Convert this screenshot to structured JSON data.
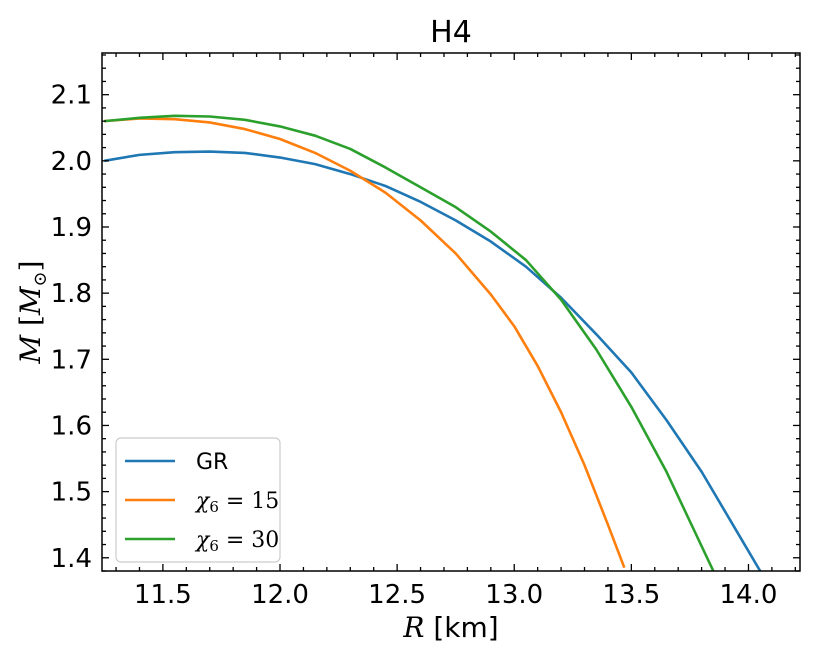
{
  "chart_data": {
    "type": "line",
    "title": "H4",
    "xlabel": "R [km]",
    "ylabel": "M [M⊙]",
    "xlim": [
      11.24,
      14.22
    ],
    "ylim": [
      1.38,
      2.163
    ],
    "x_ticks": [
      11.5,
      12.0,
      12.5,
      13.0,
      13.5,
      14.0
    ],
    "x_tick_labels": [
      "11.5",
      "12.0",
      "12.5",
      "13.0",
      "13.5",
      "14.0"
    ],
    "y_ticks": [
      1.4,
      1.5,
      1.6,
      1.7,
      1.8,
      1.9,
      2.0,
      2.1
    ],
    "y_tick_labels": [
      "1.4",
      "1.5",
      "1.6",
      "1.7",
      "1.8",
      "1.9",
      "2.0",
      "2.1"
    ],
    "minor_ticks": true,
    "ticks_direction": "in",
    "grid": false,
    "legend_position": "lower-left",
    "series": [
      {
        "name": "GR",
        "color": "#1f77b4",
        "points": [
          [
            11.25,
            2.0
          ],
          [
            11.4,
            2.009
          ],
          [
            11.55,
            2.013
          ],
          [
            11.7,
            2.014
          ],
          [
            11.85,
            2.012
          ],
          [
            12.0,
            2.005
          ],
          [
            12.15,
            1.995
          ],
          [
            12.3,
            1.98
          ],
          [
            12.45,
            1.962
          ],
          [
            12.6,
            1.938
          ],
          [
            12.75,
            1.91
          ],
          [
            12.9,
            1.878
          ],
          [
            13.05,
            1.84
          ],
          [
            13.2,
            1.793
          ],
          [
            13.35,
            1.738
          ],
          [
            13.5,
            1.68
          ],
          [
            13.65,
            1.608
          ],
          [
            13.8,
            1.53
          ],
          [
            13.95,
            1.44
          ],
          [
            14.05,
            1.38
          ]
        ]
      },
      {
        "name": "χ₆ = 15",
        "color": "#ff7f0e",
        "points": [
          [
            11.25,
            2.06
          ],
          [
            11.4,
            2.064
          ],
          [
            11.55,
            2.063
          ],
          [
            11.7,
            2.058
          ],
          [
            11.85,
            2.048
          ],
          [
            12.0,
            2.033
          ],
          [
            12.15,
            2.012
          ],
          [
            12.3,
            1.985
          ],
          [
            12.45,
            1.952
          ],
          [
            12.6,
            1.91
          ],
          [
            12.75,
            1.86
          ],
          [
            12.9,
            1.798
          ],
          [
            13.0,
            1.75
          ],
          [
            13.1,
            1.69
          ],
          [
            13.2,
            1.62
          ],
          [
            13.3,
            1.54
          ],
          [
            13.4,
            1.45
          ],
          [
            13.47,
            1.385
          ]
        ]
      },
      {
        "name": "χ₆ = 30",
        "color": "#2ca02c",
        "points": [
          [
            11.25,
            2.06
          ],
          [
            11.4,
            2.065
          ],
          [
            11.55,
            2.068
          ],
          [
            11.7,
            2.067
          ],
          [
            11.85,
            2.062
          ],
          [
            12.0,
            2.052
          ],
          [
            12.15,
            2.038
          ],
          [
            12.3,
            2.018
          ],
          [
            12.45,
            1.99
          ],
          [
            12.6,
            1.96
          ],
          [
            12.75,
            1.93
          ],
          [
            12.9,
            1.893
          ],
          [
            13.05,
            1.85
          ],
          [
            13.2,
            1.79
          ],
          [
            13.35,
            1.715
          ],
          [
            13.5,
            1.628
          ],
          [
            13.65,
            1.53
          ],
          [
            13.75,
            1.455
          ],
          [
            13.85,
            1.38
          ]
        ]
      }
    ]
  }
}
